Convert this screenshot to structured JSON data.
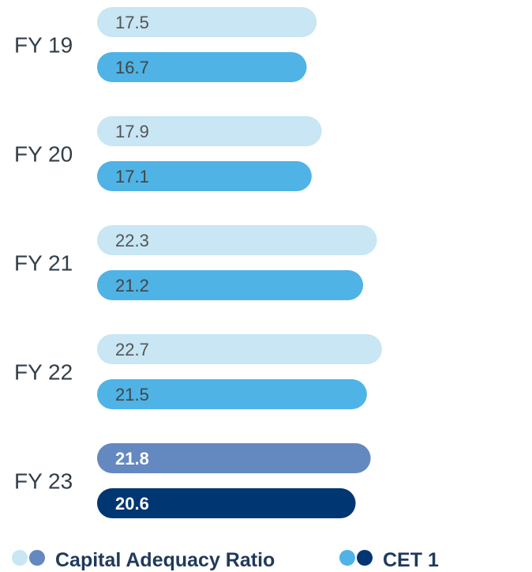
{
  "chart_data": {
    "type": "bar",
    "orientation": "horizontal",
    "categories": [
      "FY 19",
      "FY 20",
      "FY 21",
      "FY 22",
      "FY 23"
    ],
    "series": [
      {
        "name": "Capital Adequacy Ratio",
        "values": [
          17.5,
          17.9,
          22.3,
          22.7,
          21.8
        ],
        "color": "#c8e6f3",
        "highlight_color": "#6488c0",
        "label_color": "#555555",
        "highlight_label_color": "#ffffff"
      },
      {
        "name": "CET 1",
        "values": [
          16.7,
          17.1,
          21.2,
          21.5,
          20.6
        ],
        "color": "#4fb3e5",
        "highlight_color": "#003672",
        "label_color": "#444444",
        "highlight_label_color": "#ffffff"
      }
    ],
    "highlight_category": "FY 23",
    "legend": {
      "placement": "bottom",
      "items": [
        {
          "label": "Capital Adequacy Ratio",
          "colors": [
            "#c8e6f3",
            "#6488c0"
          ]
        },
        {
          "label": "CET 1",
          "colors": [
            "#4fb3e5",
            "#003672"
          ]
        }
      ]
    },
    "xlim": [
      0,
      40
    ],
    "grid": false
  }
}
